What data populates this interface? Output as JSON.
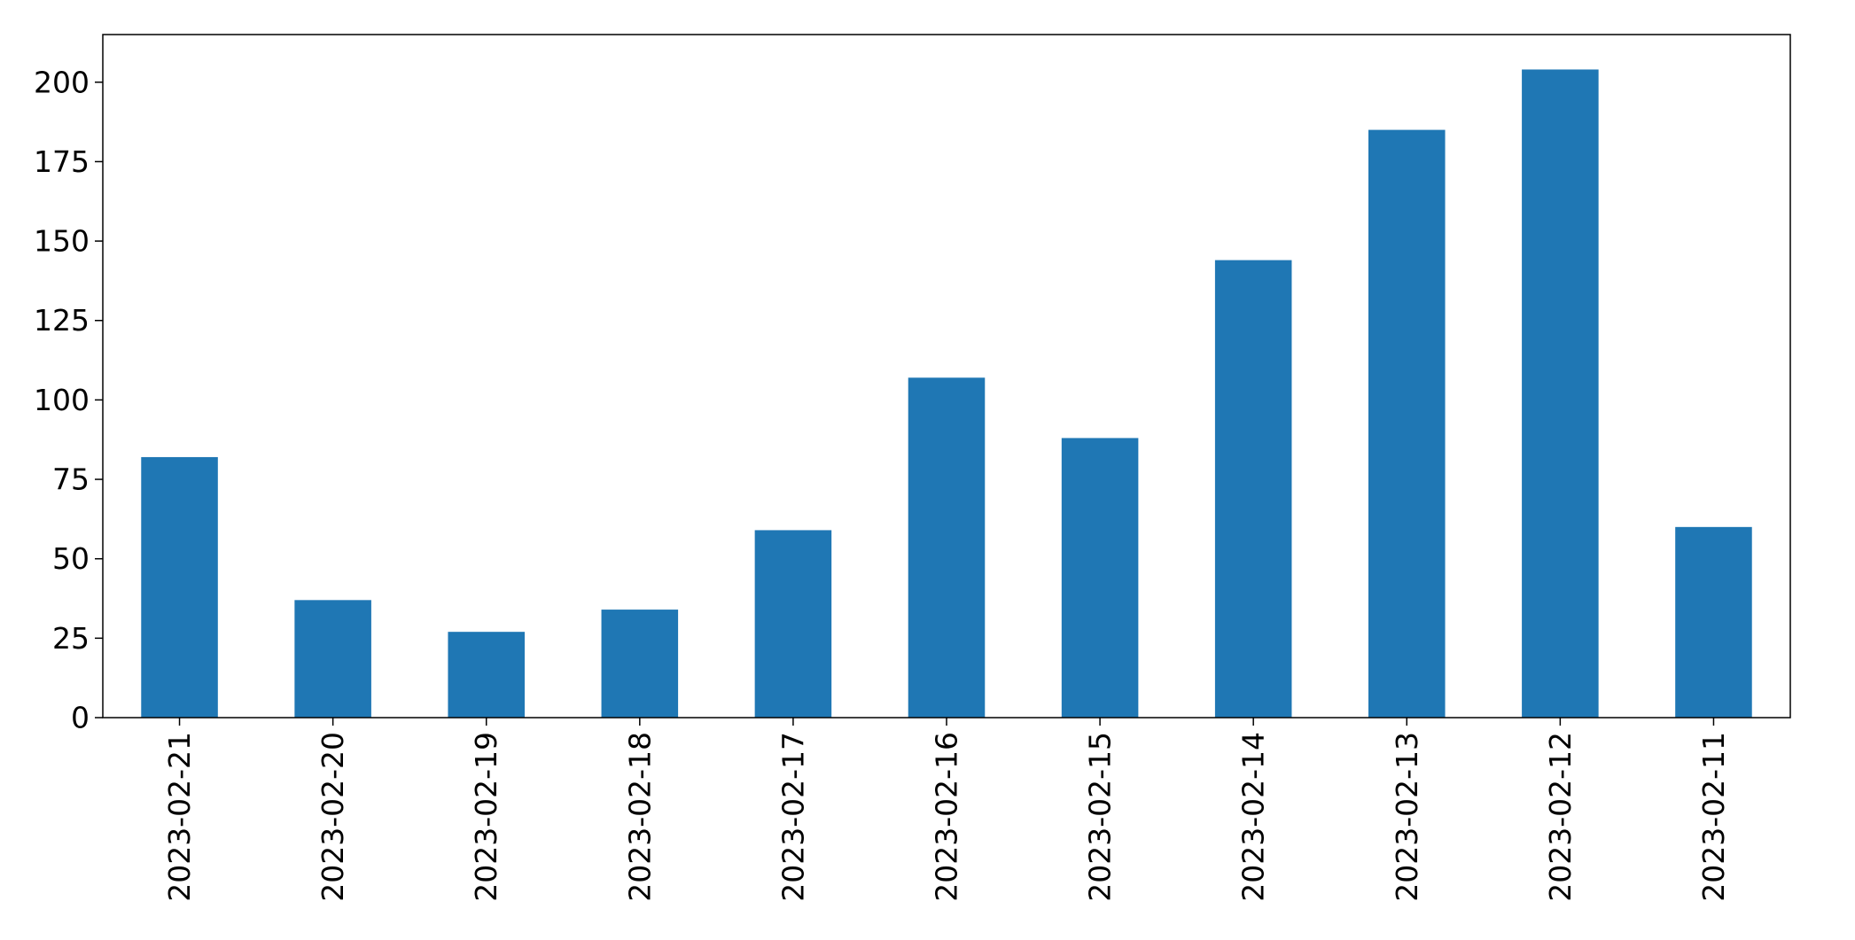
{
  "chart_data": {
    "type": "bar",
    "title": "",
    "xlabel": "",
    "ylabel": "",
    "categories": [
      "2023-02-21",
      "2023-02-20",
      "2023-02-19",
      "2023-02-18",
      "2023-02-17",
      "2023-02-16",
      "2023-02-15",
      "2023-02-14",
      "2023-02-13",
      "2023-02-12",
      "2023-02-11"
    ],
    "values": [
      82,
      37,
      27,
      34,
      59,
      107,
      88,
      144,
      185,
      204,
      60
    ],
    "ylim": [
      0,
      215
    ],
    "yticks": [
      0,
      25,
      50,
      75,
      100,
      125,
      150,
      175,
      200
    ],
    "grid": false,
    "legend": "none",
    "bar_color": "#1f77b4"
  }
}
